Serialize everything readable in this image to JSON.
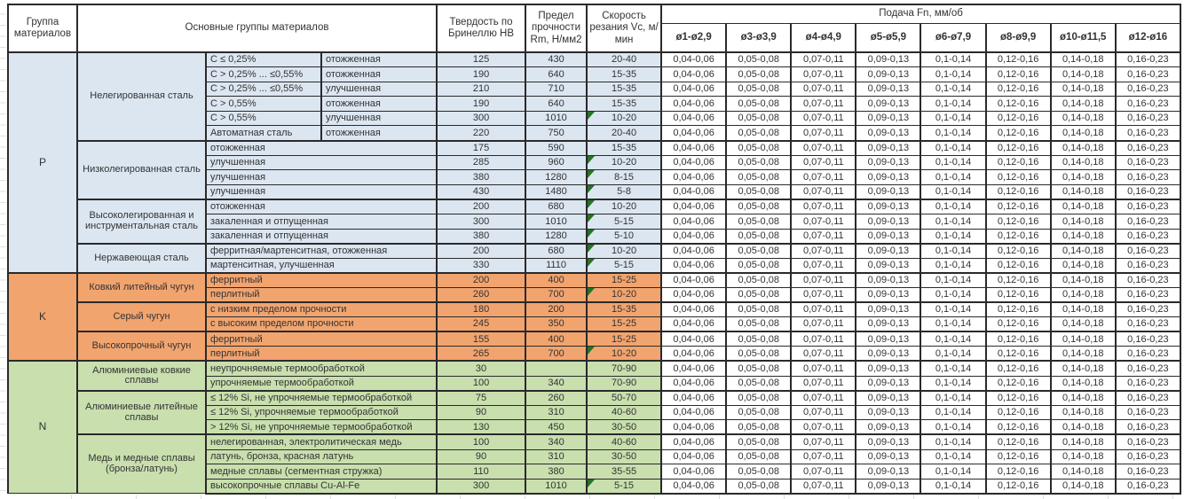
{
  "title": "Таблица режимов резания (подача Fn по диаметрам)",
  "colors": {
    "group_p_bg": "#DCE6F1",
    "group_k_bg": "#F2A46F",
    "group_n_bg": "#C9DFAE",
    "comment_marker": "#267326",
    "border": "#2a2a2a",
    "text": "#333333"
  },
  "header": {
    "col_group": "Группа материалов",
    "col_materials": "Основные группы материалов",
    "col_hardness": "Твердость по Бринеллю HB",
    "col_strength": "Предел прочности Rm, Н/мм2",
    "col_speed": "Скорость резания Vc, м/мин",
    "feed_title": "Подача Fn, мм/об",
    "feed_columns": [
      "ø1-ø2,9",
      "ø3-ø3,9",
      "ø4-ø4,9",
      "ø5-ø5,9",
      "ø6-ø7,9",
      "ø8-ø9,9",
      "ø10-ø11,5",
      "ø12-ø16"
    ]
  },
  "feed_values": [
    "0,04-0,06",
    "0,05-0,08",
    "0,07-0,11",
    "0,09-0,13",
    "0,1-0,14",
    "0,12-0,16",
    "0,14-0,18",
    "0,16-0,23"
  ],
  "groups": [
    {
      "id": "P",
      "label": "P",
      "subgroups": [
        {
          "name": "Нелегированная сталь",
          "rows": [
            {
              "spec": "C ≤ 0,25%",
              "state": "отожженная",
              "hb": "125",
              "rm": "430",
              "vc": "20-40",
              "marker": false
            },
            {
              "spec": "C > 0,25% ... ≤0,55%",
              "state": "отожженная",
              "hb": "190",
              "rm": "640",
              "vc": "15-35",
              "marker": false
            },
            {
              "spec": "C > 0,25% ... ≤0,55%",
              "state": "улучшенная",
              "hb": "210",
              "rm": "710",
              "vc": "15-35",
              "marker": false
            },
            {
              "spec": "C > 0,55%",
              "state": "отожженная",
              "hb": "190",
              "rm": "640",
              "vc": "15-35",
              "marker": false
            },
            {
              "spec": "C > 0,55%",
              "state": "улучшенная",
              "hb": "300",
              "rm": "1010",
              "vc": "10-20",
              "marker": true
            },
            {
              "spec": "Автоматная сталь",
              "state": "отожженная",
              "hb": "220",
              "rm": "750",
              "vc": "20-40",
              "marker": false
            }
          ]
        },
        {
          "name": "Низколегированная сталь",
          "rows": [
            {
              "desc": "отожженная",
              "hb": "175",
              "rm": "590",
              "vc": "15-35",
              "marker": false
            },
            {
              "desc": "улучшенная",
              "hb": "285",
              "rm": "960",
              "vc": "10-20",
              "marker": true
            },
            {
              "desc": "улучшенная",
              "hb": "380",
              "rm": "1280",
              "vc": "8-15",
              "marker": true
            },
            {
              "desc": "улучшенная",
              "hb": "430",
              "rm": "1480",
              "vc": "5-8",
              "marker": true
            }
          ]
        },
        {
          "name": "Высоколегированная и инструментальная сталь",
          "rows": [
            {
              "desc": "отожженная",
              "hb": "200",
              "rm": "680",
              "vc": "10-20",
              "marker": true
            },
            {
              "desc": "закаленная и отпущенная",
              "hb": "300",
              "rm": "1010",
              "vc": "5-15",
              "marker": true
            },
            {
              "desc": "закаленная и отпущенная",
              "hb": "380",
              "rm": "1280",
              "vc": "5-10",
              "marker": true
            }
          ]
        },
        {
          "name": "Нержавеющая сталь",
          "rows": [
            {
              "desc": "ферритная/мартенситная, отожженная",
              "hb": "200",
              "rm": "680",
              "vc": "10-20",
              "marker": true
            },
            {
              "desc": "мартенситная, улучшенная",
              "hb": "330",
              "rm": "1110",
              "vc": "5-15",
              "marker": true
            }
          ]
        }
      ]
    },
    {
      "id": "K",
      "label": "K",
      "subgroups": [
        {
          "name": "Ковкий литейный чугун",
          "rows": [
            {
              "desc": "ферритный",
              "hb": "200",
              "rm": "400",
              "vc": "15-25",
              "marker": false
            },
            {
              "desc": "перлитный",
              "hb": "260",
              "rm": "700",
              "vc": "10-20",
              "marker": true
            }
          ]
        },
        {
          "name": "Серый чугун",
          "rows": [
            {
              "desc": "с низким пределом прочности",
              "hb": "180",
              "rm": "200",
              "vc": "15-35",
              "marker": false
            },
            {
              "desc": "с высоким пределом прочности",
              "hb": "245",
              "rm": "350",
              "vc": "15-25",
              "marker": false
            }
          ]
        },
        {
          "name": "Высокопрочный чугун",
          "rows": [
            {
              "desc": "ферритный",
              "hb": "155",
              "rm": "400",
              "vc": "15-25",
              "marker": false
            },
            {
              "desc": "перлитный",
              "hb": "265",
              "rm": "700",
              "vc": "10-20",
              "marker": true
            }
          ]
        }
      ]
    },
    {
      "id": "N",
      "label": "N",
      "subgroups": [
        {
          "name": "Алюминиевые ковкие сплавы",
          "rows": [
            {
              "desc": "неупрочняемые термообработкой",
              "hb": "30",
              "rm": "",
              "vc": "70-90",
              "marker": false
            },
            {
              "desc": "упрочняемые термообработкой",
              "hb": "100",
              "rm": "340",
              "vc": "70-90",
              "marker": false
            }
          ]
        },
        {
          "name": "Алюминиевые литейные сплавы",
          "rows": [
            {
              "desc": "≤ 12% Si, не упрочняемые термообработкой",
              "hb": "75",
              "rm": "260",
              "vc": "50-70",
              "marker": false
            },
            {
              "desc": "≤ 12% Si, упрочняемые термообработкой",
              "hb": "90",
              "rm": "310",
              "vc": "40-60",
              "marker": false
            },
            {
              "desc": "> 12% Si, не упрочняемые термообработкой",
              "hb": "130",
              "rm": "450",
              "vc": "30-50",
              "marker": false
            }
          ]
        },
        {
          "name": "Медь и медные сплавы (бронза/латунь)",
          "rows": [
            {
              "desc": "нелегированная, электролитическая медь",
              "hb": "100",
              "rm": "340",
              "vc": "40-60",
              "marker": false
            },
            {
              "desc": "латунь, бронза, красная латунь",
              "hb": "90",
              "rm": "310",
              "vc": "30-50",
              "marker": false
            },
            {
              "desc": "медные сплавы (сегментная стружка)",
              "hb": "110",
              "rm": "380",
              "vc": "35-55",
              "marker": false
            },
            {
              "desc": "высокопрочные сплавы Cu-Al-Fe",
              "hb": "300",
              "rm": "1010",
              "vc": "5-15",
              "marker": true
            }
          ]
        }
      ]
    }
  ]
}
